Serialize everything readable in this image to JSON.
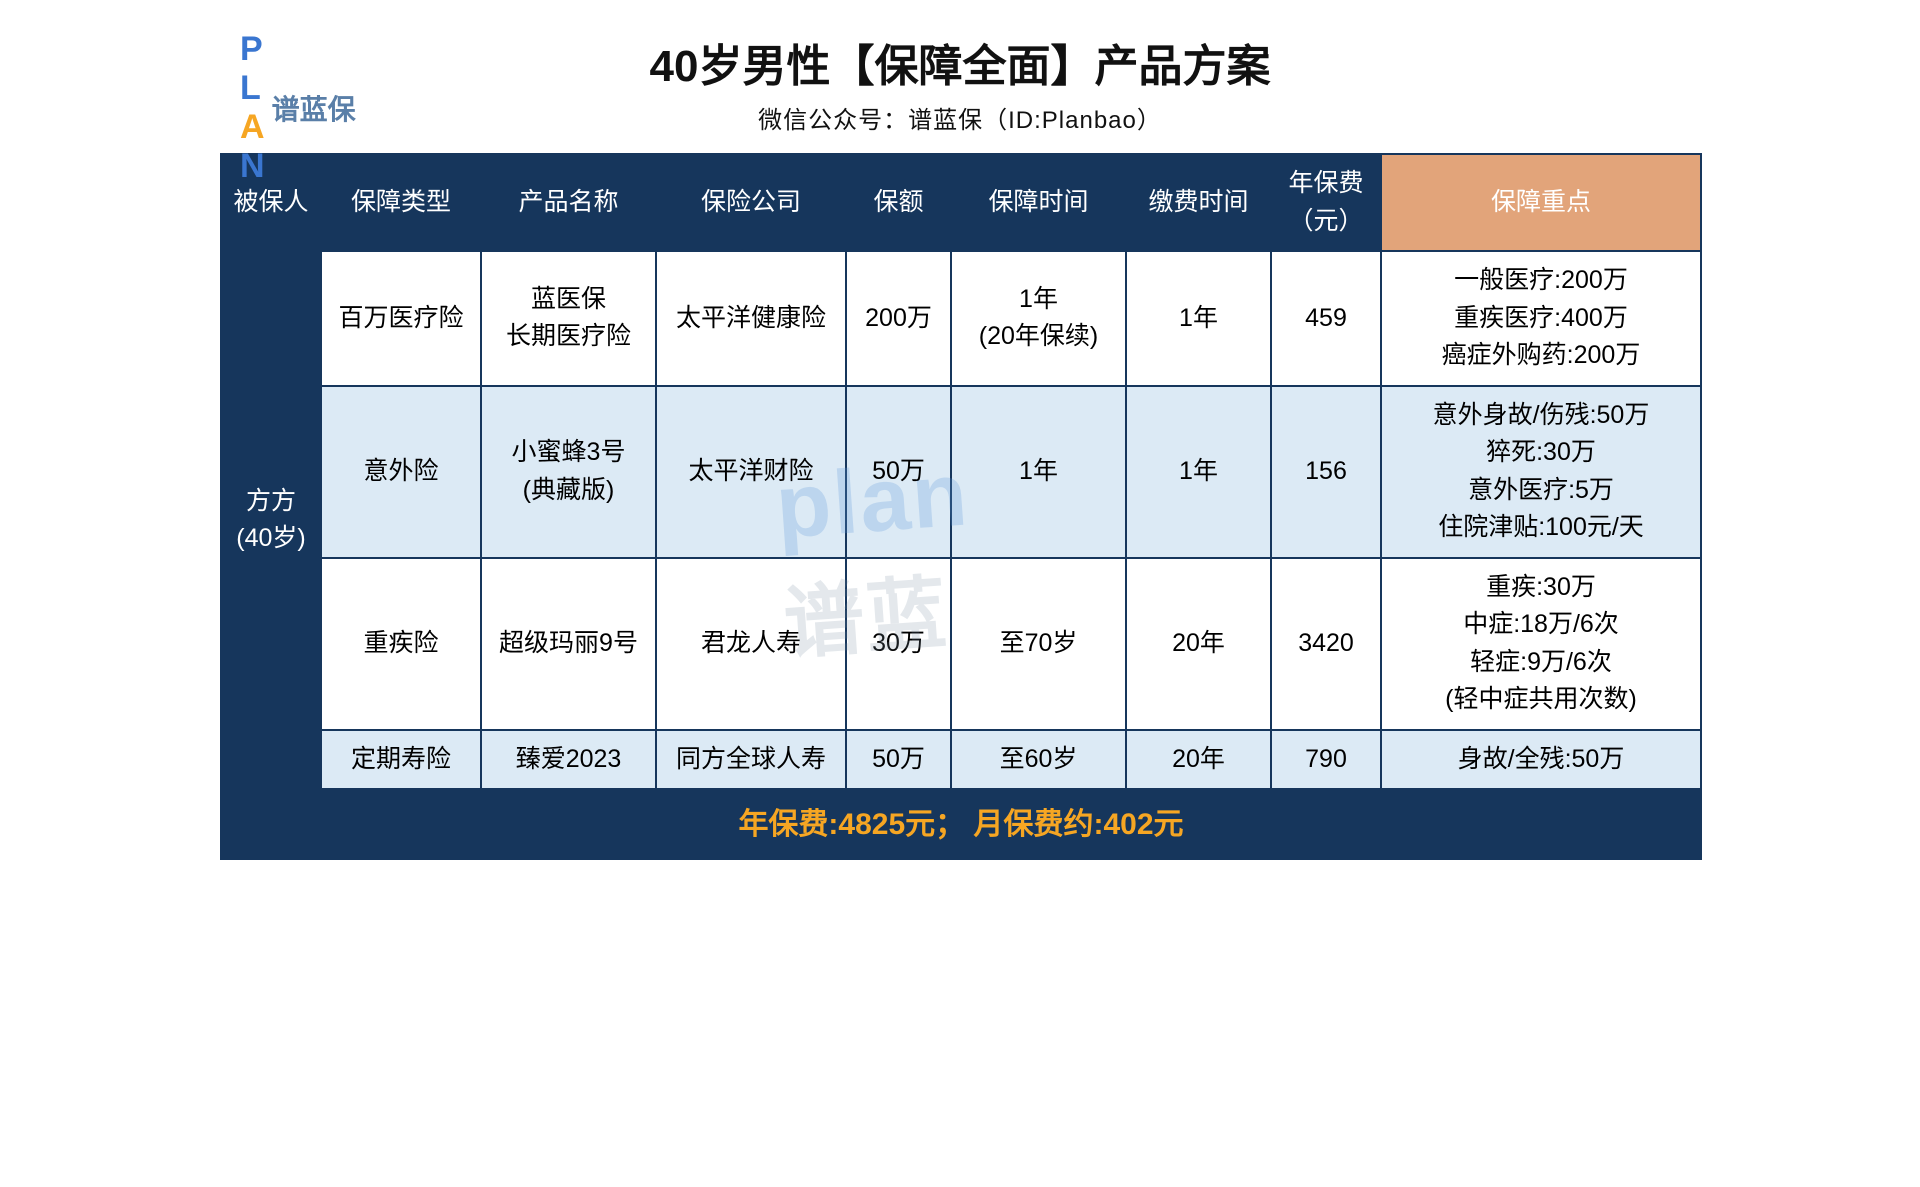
{
  "logo": {
    "mark_p": "P",
    "mark_l": "L",
    "mark_a": "A",
    "mark_n": "N",
    "text": "谱蓝保"
  },
  "header": {
    "title": "40岁男性【保障全面】产品方案",
    "subtitle": "微信公众号：谱蓝保（ID:Planbao）"
  },
  "table": {
    "columns": [
      "被保人",
      "保障类型",
      "产品名称",
      "保险公司",
      "保额",
      "保障时间",
      "缴费时间",
      "年保费（元）",
      "保障重点"
    ],
    "insured": "方方\n(40岁)",
    "rows": [
      {
        "type": "百万医疗险",
        "product": "蓝医保\n长期医疗险",
        "company": "太平洋健康险",
        "coverage": "200万",
        "term": "1年\n(20年保续)",
        "pay_term": "1年",
        "premium": "459",
        "highlights": "一般医疗:200万\n重疾医疗:400万\n癌症外购药:200万",
        "alt": false
      },
      {
        "type": "意外险",
        "product": "小蜜蜂3号\n(典藏版)",
        "company": "太平洋财险",
        "coverage": "50万",
        "term": "1年",
        "pay_term": "1年",
        "premium": "156",
        "highlights": "意外身故/伤残:50万\n猝死:30万\n意外医疗:5万\n住院津贴:100元/天",
        "alt": true
      },
      {
        "type": "重疾险",
        "product": "超级玛丽9号",
        "company": "君龙人寿",
        "coverage": "30万",
        "term": "至70岁",
        "pay_term": "20年",
        "premium": "3420",
        "highlights": "重疾:30万\n中症:18万/6次\n轻症:9万/6次\n(轻中症共用次数)",
        "alt": false
      },
      {
        "type": "定期寿险",
        "product": "臻爱2023",
        "company": "同方全球人寿",
        "coverage": "50万",
        "term": "至60岁",
        "pay_term": "20年",
        "premium": "790",
        "highlights": "身故/全残:50万",
        "alt": true
      }
    ],
    "summary": "年保费:4825元；  月保费约:402元"
  },
  "watermark": {
    "plan": "plan",
    "text": " 谱蓝"
  },
  "styling": {
    "header_bg": "#16365c",
    "header_text": "#ffffff",
    "highlight_header_bg": "#e2a47a",
    "alt_row_bg": "#dceaf5",
    "summary_text_color": "#f6a623",
    "border_color": "#16365c",
    "title_fontsize": 44,
    "subtitle_fontsize": 24,
    "cell_fontsize": 25,
    "summary_fontsize": 30
  }
}
